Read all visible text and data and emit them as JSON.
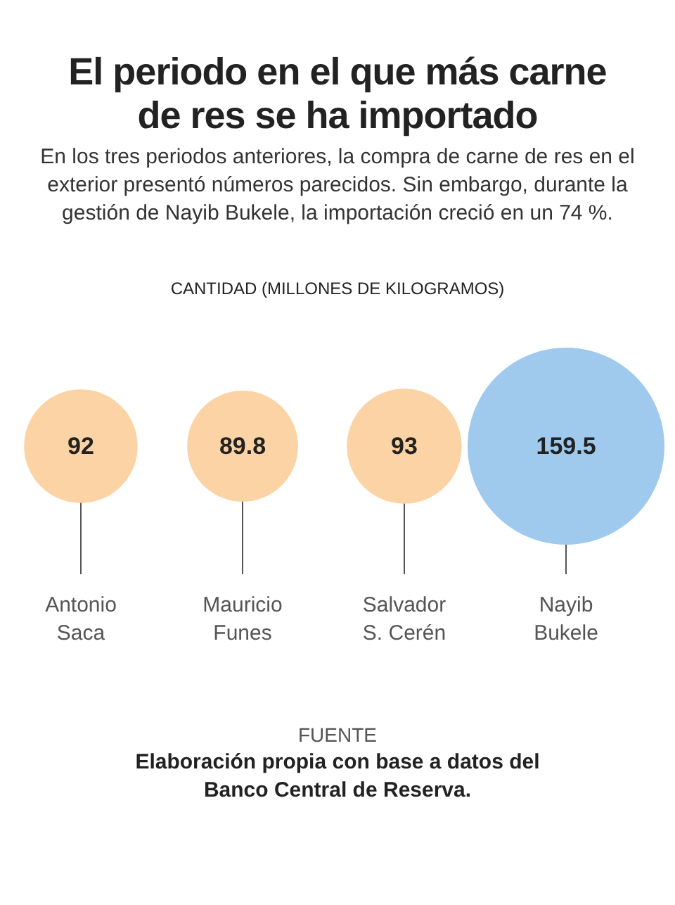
{
  "chart_data": {
    "type": "other",
    "title": "El periodo en el que más carne de res se ha importado",
    "subtitle": "En los tres periodos anteriores, la compra de carne de res en el exterior presentó números parecidos. Sin embargo, durante la gestión de Nayib Bukele, la importación creció en un 74 %.",
    "ylabel": "CANTIDAD (MILLONES DE KILOGRAMOS)",
    "categories": [
      "Antonio Saca",
      "Mauricio Funes",
      "Salvador S. Cerén",
      "Nayib Bukele"
    ],
    "values": [
      92,
      89.8,
      93,
      159.5
    ],
    "colors": [
      "#fcd3a4",
      "#fcd3a4",
      "#fcd3a4",
      "#9fcaee"
    ],
    "data_labels": true,
    "annotations": [
      "FUENTE",
      "Elaboración propia con base a datos del Banco Central de Reserva."
    ]
  }
}
